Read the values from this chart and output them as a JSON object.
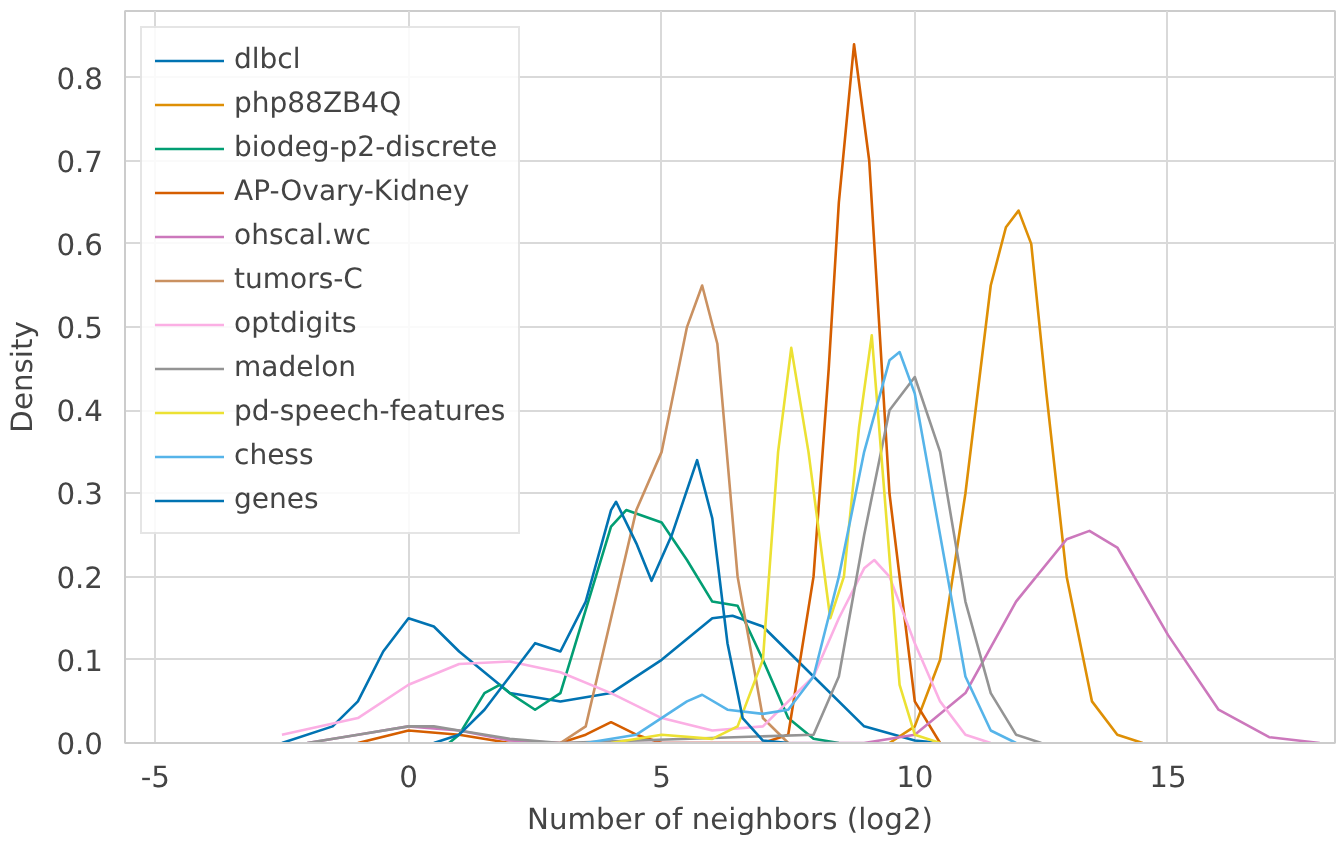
{
  "chart_data": {
    "type": "line",
    "xlabel": "Number of neighbors (log2)",
    "ylabel": "Density",
    "xlim": [
      -5.6,
      18.3
    ],
    "ylim": [
      0,
      0.88
    ],
    "xticks": [
      -5,
      0,
      5,
      10,
      15
    ],
    "yticks": [
      {
        "value": 0,
        "label": "0.0"
      },
      {
        "value": 0.1,
        "label": "0.1"
      },
      {
        "value": 0.2,
        "label": "0.2"
      },
      {
        "value": 0.3,
        "label": "0.3"
      },
      {
        "value": 0.4,
        "label": "0.4"
      },
      {
        "value": 0.5,
        "label": "0.5"
      },
      {
        "value": 0.6,
        "label": "0.6"
      },
      {
        "value": 0.7,
        "label": "0.7"
      },
      {
        "value": 0.8,
        "label": "0.8"
      }
    ],
    "grid": true,
    "legend": "top left",
    "marker": "none",
    "line_style": "solid",
    "series": [
      {
        "name": "dlbcl",
        "color": "#0173b2",
        "x": [
          -2.5,
          -1.5,
          -1,
          -0.5,
          0,
          0.5,
          1,
          2,
          3,
          4,
          5,
          6,
          6.4,
          7,
          7.5,
          8,
          9,
          10,
          10.5
        ],
        "values": [
          0,
          0.02,
          0.05,
          0.11,
          0.15,
          0.14,
          0.11,
          0.06,
          0.05,
          0.06,
          0.1,
          0.15,
          0.153,
          0.14,
          0.11,
          0.08,
          0.02,
          0.003,
          0
        ]
      },
      {
        "name": "php88ZB4Q",
        "color": "#de8f05",
        "x": [
          9.5,
          10,
          10.5,
          11,
          11.5,
          11.8,
          12.05,
          12.3,
          12.6,
          13,
          13.5,
          14,
          14.5
        ],
        "values": [
          0,
          0.02,
          0.1,
          0.3,
          0.55,
          0.62,
          0.64,
          0.6,
          0.42,
          0.2,
          0.05,
          0.01,
          0
        ]
      },
      {
        "name": "biodeg-p2-discrete",
        "color": "#029e73",
        "x": [
          0.8,
          1,
          1.5,
          1.8,
          2,
          2.5,
          3,
          3.5,
          4,
          4.3,
          5,
          5.5,
          6,
          6.5,
          7,
          7.5,
          8,
          8.5
        ],
        "values": [
          0,
          0.01,
          0.06,
          0.07,
          0.06,
          0.04,
          0.06,
          0.16,
          0.26,
          0.28,
          0.265,
          0.22,
          0.17,
          0.165,
          0.1,
          0.03,
          0.005,
          0
        ]
      },
      {
        "name": "AP-Ovary-Kidney",
        "color": "#d55e00",
        "x": [
          -1,
          0,
          1,
          2,
          3,
          3.5,
          4,
          4.5,
          5,
          7,
          7.5,
          8,
          8.3,
          8.5,
          8.8,
          9.1,
          9.5,
          10,
          10.5
        ],
        "values": [
          0,
          0.015,
          0.01,
          0,
          0,
          0.01,
          0.025,
          0.01,
          0,
          0,
          0.01,
          0.2,
          0.45,
          0.65,
          0.84,
          0.7,
          0.3,
          0.05,
          0
        ]
      },
      {
        "name": "ohscal.wc",
        "color": "#cc78bc",
        "x": [
          -2,
          -1,
          0,
          1,
          2,
          3,
          9,
          10,
          11,
          12,
          13,
          13.45,
          14,
          15,
          16,
          17,
          18
        ],
        "values": [
          0,
          0.01,
          0.02,
          0.015,
          0.003,
          0,
          0,
          0.01,
          0.06,
          0.17,
          0.245,
          0.255,
          0.235,
          0.13,
          0.04,
          0.007,
          0
        ]
      },
      {
        "name": "tumors-C",
        "color": "#ca9161",
        "x": [
          3,
          3.5,
          4,
          4.5,
          5,
          5.5,
          5.8,
          6.1,
          6.5,
          7,
          7.5
        ],
        "values": [
          0,
          0.02,
          0.15,
          0.28,
          0.35,
          0.5,
          0.55,
          0.48,
          0.2,
          0.03,
          0
        ]
      },
      {
        "name": "optdigits",
        "color": "#fbafe4",
        "x": [
          -2.5,
          -1,
          0,
          1,
          2,
          3,
          4,
          5,
          6,
          7,
          8,
          8.5,
          9,
          9.2,
          9.5,
          10,
          10.5,
          11,
          11.5
        ],
        "values": [
          0.01,
          0.03,
          0.07,
          0.095,
          0.098,
          0.085,
          0.06,
          0.03,
          0.015,
          0.02,
          0.08,
          0.15,
          0.21,
          0.22,
          0.2,
          0.12,
          0.05,
          0.01,
          0
        ]
      },
      {
        "name": "madelon",
        "color": "#949494",
        "x": [
          -2,
          -1,
          0,
          0.5,
          1,
          2,
          3,
          8,
          8.5,
          9,
          9.5,
          10,
          10.5,
          11,
          11.5,
          12,
          12.5
        ],
        "values": [
          0,
          0.01,
          0.02,
          0.02,
          0.015,
          0.005,
          0,
          0.01,
          0.08,
          0.25,
          0.4,
          0.44,
          0.35,
          0.17,
          0.06,
          0.01,
          0
        ]
      },
      {
        "name": "pd-speech-features",
        "color": "#ece133",
        "x": [
          4,
          5,
          6,
          6.5,
          7,
          7.3,
          7.56,
          7.9,
          8.33,
          8.6,
          8.9,
          9.15,
          9.4,
          9.7,
          10,
          10.5
        ],
        "values": [
          0,
          0.01,
          0.005,
          0.02,
          0.1,
          0.35,
          0.475,
          0.35,
          0.15,
          0.2,
          0.38,
          0.49,
          0.3,
          0.07,
          0.01,
          0
        ]
      },
      {
        "name": "chess",
        "color": "#56b4e9",
        "x": [
          3.5,
          4.5,
          5.5,
          5.8,
          6.3,
          7,
          7.5,
          8,
          8.5,
          9,
          9.5,
          9.7,
          10,
          10.5,
          11,
          11.5,
          12
        ],
        "values": [
          0,
          0.01,
          0.05,
          0.058,
          0.04,
          0.035,
          0.04,
          0.08,
          0.2,
          0.35,
          0.46,
          0.47,
          0.42,
          0.25,
          0.08,
          0.015,
          0
        ]
      },
      {
        "name": "genes",
        "color": "#0173b2",
        "x": [
          0.5,
          1,
          1.5,
          2,
          2.5,
          3,
          3.5,
          4,
          4.1,
          4.5,
          4.8,
          5.2,
          5.7,
          6,
          6.3,
          6.6,
          7,
          7.5
        ],
        "values": [
          0,
          0.01,
          0.04,
          0.08,
          0.12,
          0.11,
          0.17,
          0.28,
          0.29,
          0.24,
          0.195,
          0.25,
          0.34,
          0.27,
          0.12,
          0.03,
          0.003,
          0
        ]
      }
    ]
  }
}
